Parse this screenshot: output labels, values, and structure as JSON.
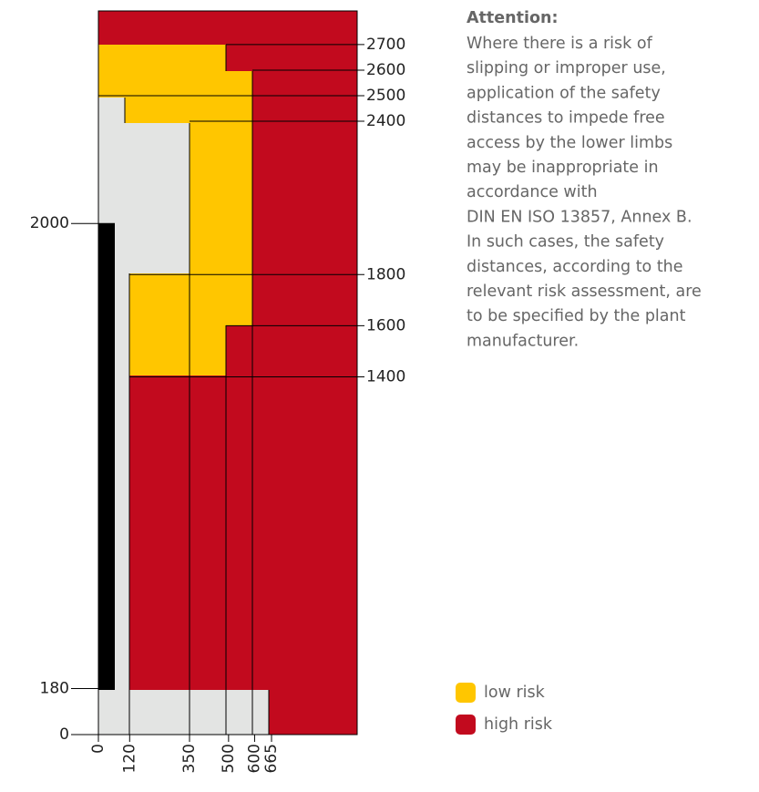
{
  "attention": {
    "title": "Attention:",
    "lines": [
      "Where there is a risk of",
      "slipping or improper use,",
      "application of the safety",
      "distances to impede free",
      "access by the lower limbs",
      "may be inappropriate in",
      "accordance with",
      "DIN EN ISO 13857, Annex B.",
      "In such cases, the safety",
      "distances, according to the",
      "relevant risk assessment, are",
      "to be specified by the plant",
      "manufacturer."
    ]
  },
  "vertical_scale": {
    "ticks_right": [
      2700,
      2600,
      2500,
      2400,
      1800,
      1600,
      1400
    ],
    "ticks_left": [
      2000,
      180,
      0
    ]
  },
  "horizontal_scale": {
    "ticks": [
      0,
      120,
      350,
      500,
      600,
      665
    ]
  },
  "legend": [
    {
      "label": "low risk",
      "color": "#ffc600"
    },
    {
      "label": "high risk",
      "color": "#c20a1e"
    }
  ]
}
